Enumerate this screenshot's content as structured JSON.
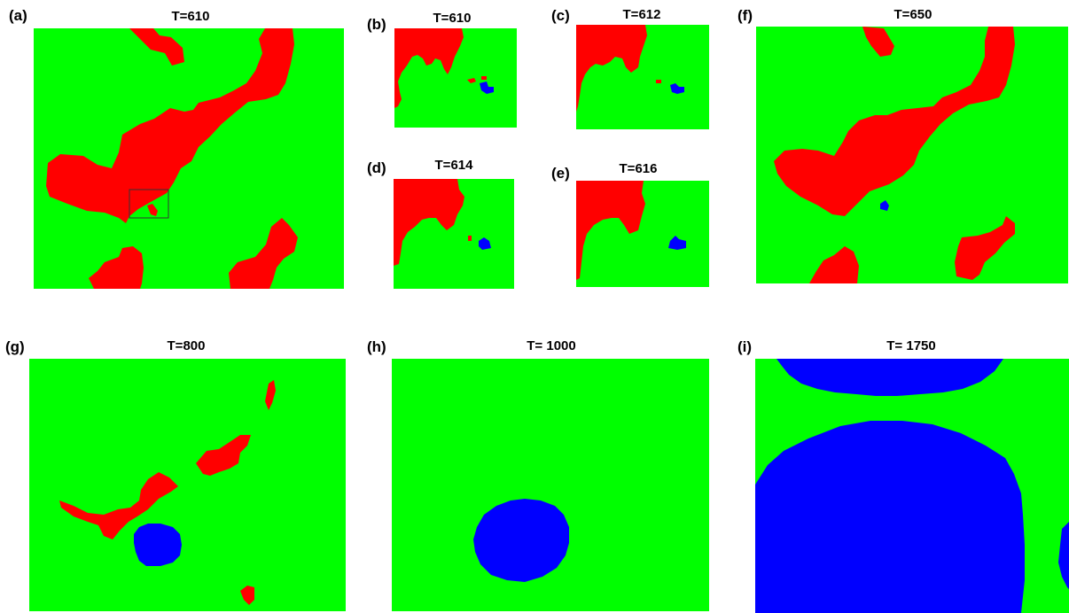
{
  "colors": {
    "green": "#00ff00",
    "red": "#ff0000",
    "blue": "#0000ff",
    "frame": "#333333"
  },
  "panels": [
    {
      "label": "(a)",
      "title": "T=610"
    },
    {
      "label": "(b)",
      "title": "T=610"
    },
    {
      "label": "(c)",
      "title": "T=612"
    },
    {
      "label": "(d)",
      "title": "T=614"
    },
    {
      "label": "(e)",
      "title": "T=616"
    },
    {
      "label": "(f)",
      "title": "T=650"
    },
    {
      "label": "(g)",
      "title": "T=800"
    },
    {
      "label": "(h)",
      "title": "T= 1000"
    },
    {
      "label": "(i)",
      "title": "T= 1750"
    }
  ]
}
